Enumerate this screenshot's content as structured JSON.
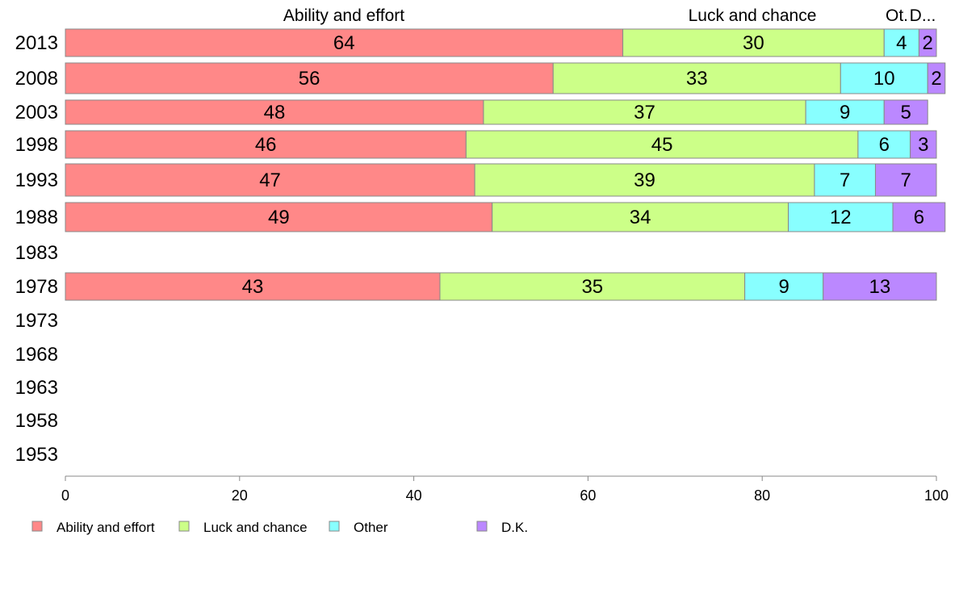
{
  "chart_data": {
    "type": "bar",
    "orientation": "horizontal",
    "stacked": true,
    "categories": [
      "2013",
      "2008",
      "2003",
      "1998",
      "1993",
      "1988",
      "1983",
      "1978",
      "1973",
      "1968",
      "1963",
      "1958",
      "1953"
    ],
    "series": [
      {
        "name": "Ability and effort",
        "color": "#ff8888",
        "values": [
          64,
          56,
          48,
          46,
          47,
          49,
          null,
          43,
          null,
          null,
          null,
          null,
          null
        ]
      },
      {
        "name": "Luck and chance",
        "color": "#ccff88",
        "values": [
          30,
          33,
          37,
          45,
          39,
          34,
          null,
          35,
          null,
          null,
          null,
          null,
          null
        ]
      },
      {
        "name": "Other",
        "color": "#88ffff",
        "values": [
          4,
          10,
          9,
          6,
          7,
          12,
          null,
          9,
          null,
          null,
          null,
          null,
          null
        ]
      },
      {
        "name": "D.K.",
        "color": "#bb88ff",
        "values": [
          2,
          2,
          5,
          3,
          7,
          6,
          null,
          13,
          null,
          null,
          null,
          null,
          null
        ]
      }
    ],
    "top_labels": [
      "Ability and effort",
      "Luck and chance",
      "Ot.",
      "D..."
    ],
    "xlim": [
      0,
      100
    ],
    "xticks": [
      0,
      20,
      40,
      60,
      80,
      100
    ],
    "grid": false,
    "legend_position": "bottom-left"
  }
}
